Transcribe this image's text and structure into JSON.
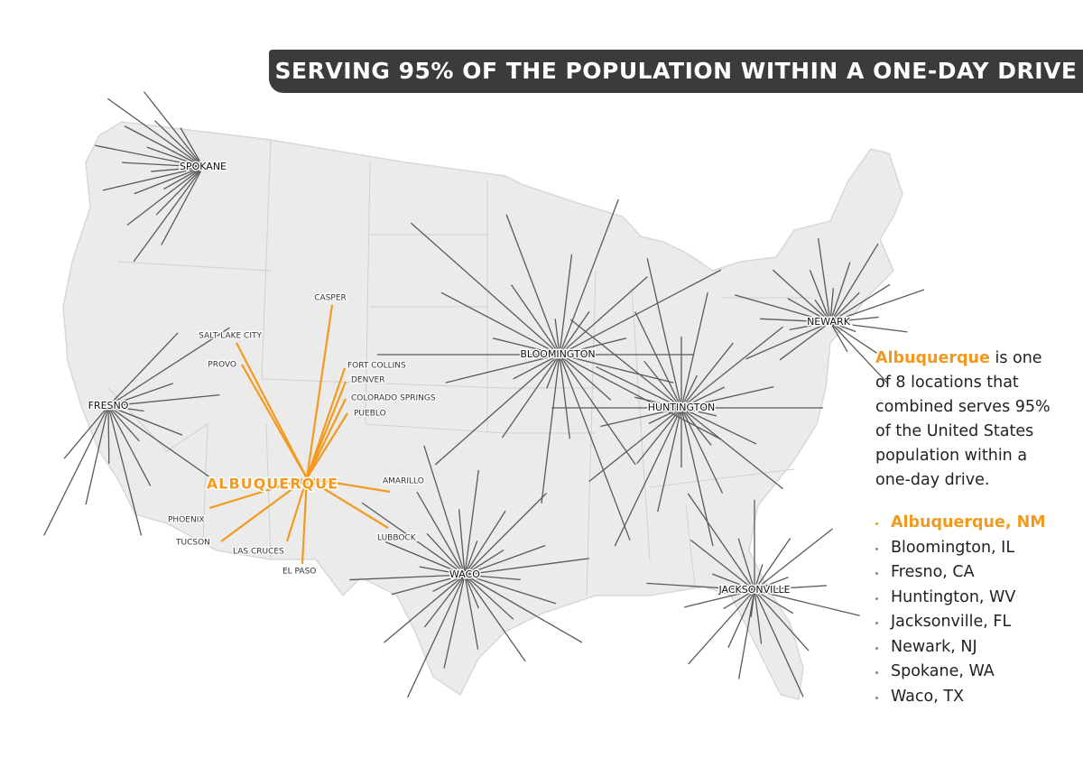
{
  "header": {
    "title": "SERVING 95% OF THE POPULATION WITHIN A ONE-DAY DRIVE"
  },
  "hubs": [
    {
      "label": "SPOKANE"
    },
    {
      "label": "FRESNO"
    },
    {
      "label": "BLOOMINGTON"
    },
    {
      "label": "HUNTINGTON"
    },
    {
      "label": "NEWARK"
    },
    {
      "label": "WACO"
    },
    {
      "label": "JACKSONVILLE"
    },
    {
      "label": "ALBUQUERQUE"
    }
  ],
  "cities": [
    {
      "label": "CASPER"
    },
    {
      "label": "SALT LAKE CITY"
    },
    {
      "label": "PROVO"
    },
    {
      "label": "FORT COLLINS"
    },
    {
      "label": "DENVER"
    },
    {
      "label": "COLORADO SPRINGS"
    },
    {
      "label": "PUEBLO"
    },
    {
      "label": "AMARILLO"
    },
    {
      "label": "LUBBOCK"
    },
    {
      "label": "EL PASO"
    },
    {
      "label": "LAS CRUCES"
    },
    {
      "label": "TUCSON"
    },
    {
      "label": "PHOENIX"
    }
  ],
  "sidebar": {
    "highlight": "Albuquerque",
    "text": "is one of 8 locations that combined serves 95% of the United States population within a one-day drive.",
    "locations": [
      "Albuquerque, NM",
      "Bloomington, IL",
      "Fresno, CA",
      "Huntington, WV",
      "Jacksonville, FL",
      "Newark, NJ",
      "Spokane, WA",
      "Waco, TX"
    ]
  }
}
